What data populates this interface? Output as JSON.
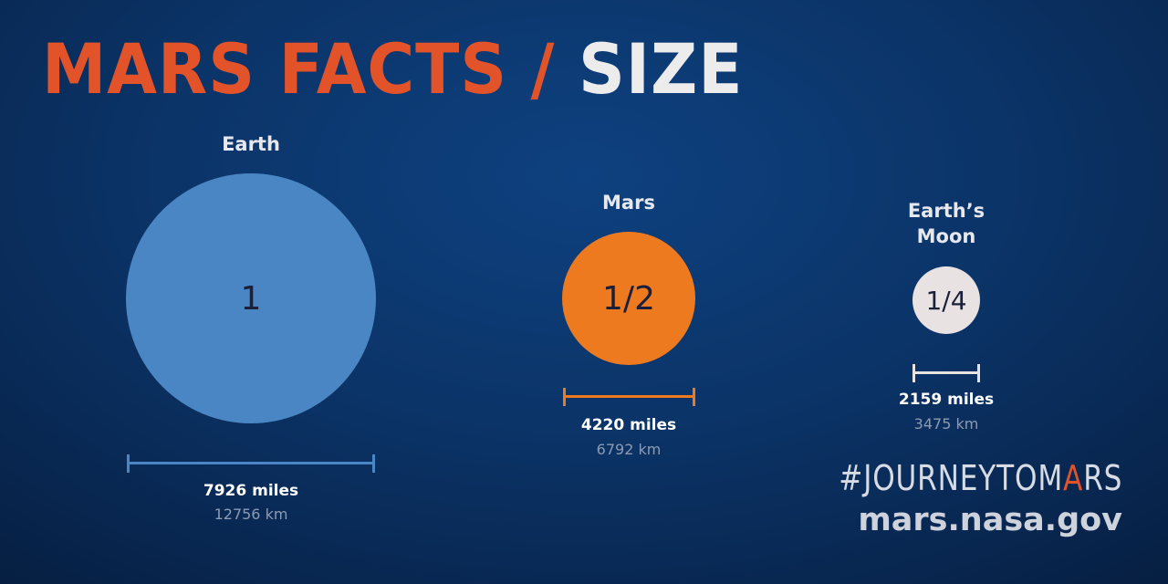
{
  "title": {
    "accent": "MARS FACTS /",
    "plain": "SIZE"
  },
  "bodies": {
    "earth": {
      "label": "Earth",
      "fraction": "1",
      "miles": "7926 miles",
      "km": "12756 km",
      "color": "#4a86c3"
    },
    "mars": {
      "label": "Mars",
      "fraction": "1/2",
      "miles": "4220 miles",
      "km": "6792 km",
      "color": "#ee7a1f"
    },
    "moon": {
      "label_line1": "Earth’s",
      "label_line2": "Moon",
      "fraction": "1/4",
      "miles": "2159 miles",
      "km": "3475 km",
      "color": "#e8e3e2"
    }
  },
  "footer": {
    "hashtag_plain": "#JOURNEYTOM",
    "hashtag_accent": "A",
    "hashtag_end": "RS",
    "site": "mars.nasa.gov"
  },
  "colors": {
    "accent": "#e2532a",
    "background": "#0b3468"
  }
}
